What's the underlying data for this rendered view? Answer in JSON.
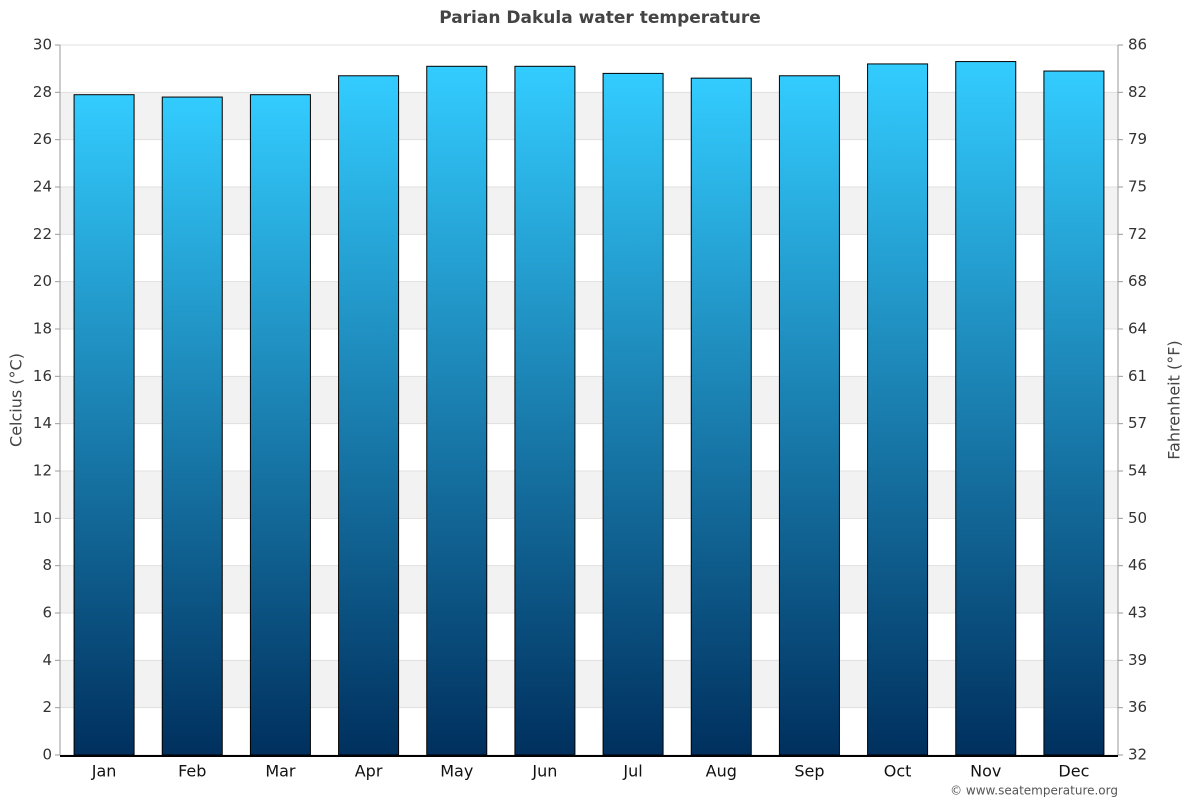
{
  "chart_data": {
    "type": "bar",
    "title": "Parian Dakula water temperature",
    "y_label": "Celcius (°C)",
    "y2_label": "Fahrenheit (°F)",
    "credit": "© www.seatemperature.org",
    "categories": [
      "Jan",
      "Feb",
      "Mar",
      "Apr",
      "May",
      "Jun",
      "Jul",
      "Aug",
      "Sep",
      "Oct",
      "Nov",
      "Dec"
    ],
    "values": [
      27.9,
      27.8,
      27.9,
      28.7,
      29.1,
      29.1,
      28.8,
      28.6,
      28.7,
      29.2,
      29.3,
      28.9
    ],
    "gradient": [
      "#33ccff",
      "#00305e"
    ],
    "ylim": [
      0,
      30
    ],
    "yticks": [
      0,
      2,
      4,
      6,
      8,
      10,
      12,
      14,
      16,
      18,
      20,
      22,
      24,
      26,
      28,
      30
    ],
    "y2lim": [
      32,
      86
    ],
    "y2ticks": [
      32,
      {
        "value": 35.6,
        "label": "36"
      },
      {
        "value": 39.2,
        "label": "39"
      },
      {
        "value": 42.8,
        "label": "43"
      },
      {
        "value": 46.4,
        "label": "46"
      },
      50,
      {
        "value": 53.6,
        "label": "54"
      },
      {
        "value": 57.2,
        "label": "57"
      },
      {
        "value": 60.8,
        "label": "61"
      },
      {
        "value": 64.4,
        "label": "64"
      },
      68,
      {
        "value": 71.6,
        "label": "72"
      },
      {
        "value": 75.2,
        "label": "75"
      },
      {
        "value": 78.8,
        "label": "79"
      },
      {
        "value": 82.4,
        "label": "82"
      },
      86
    ],
    "grid": true
  }
}
